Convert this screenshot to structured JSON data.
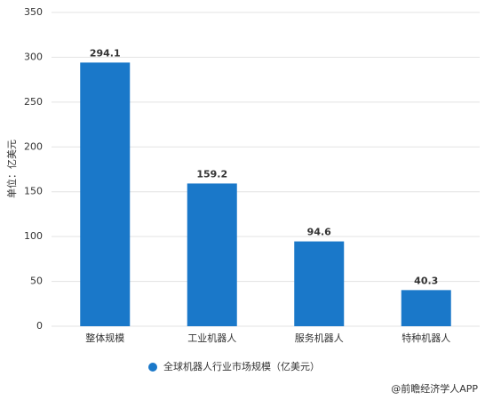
{
  "chart_data": {
    "type": "bar",
    "y_label": "单位：亿美元",
    "categories": [
      "整体规模",
      "工业机器人",
      "服务机器人",
      "特种机器人"
    ],
    "series": [
      {
        "name": "全球机器人行业市场规模（亿美元）",
        "color": "#1a78c9",
        "values": [
          294.1,
          159.2,
          94.6,
          40.3
        ]
      }
    ],
    "ylim": [
      0,
      350
    ],
    "yticks": [
      0,
      50,
      100,
      150,
      200,
      250,
      300,
      350
    ],
    "grid": true,
    "source": "@前瞻经济学人APP"
  }
}
